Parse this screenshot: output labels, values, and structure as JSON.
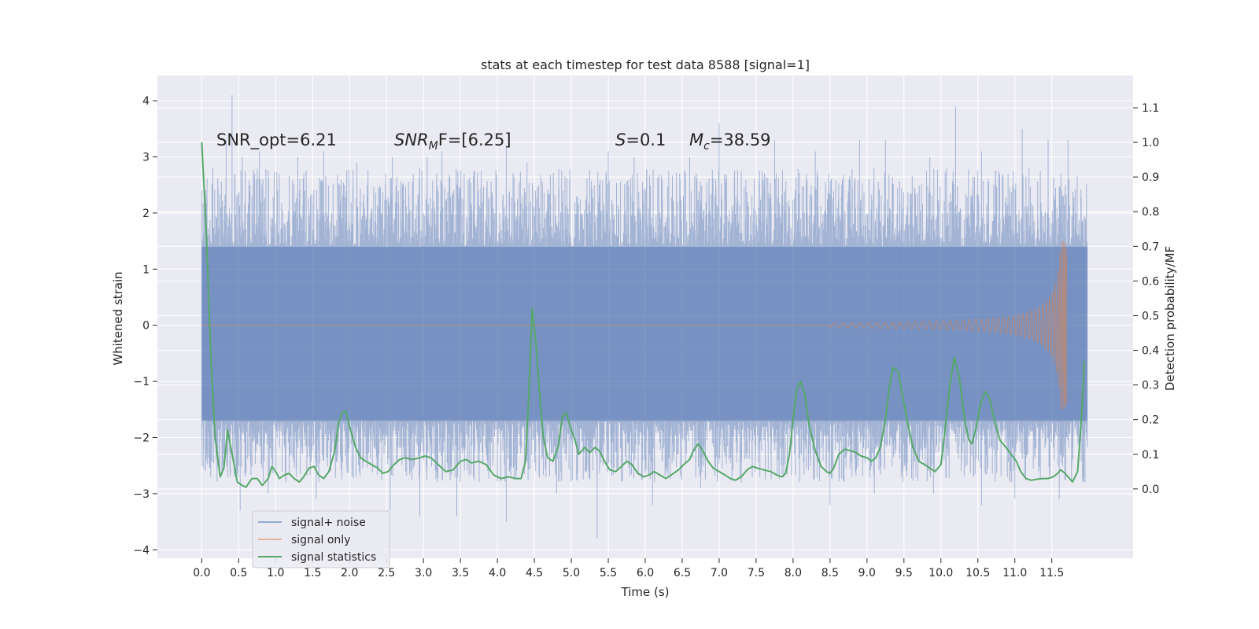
{
  "chart_data": {
    "type": "line",
    "title": "stats at each timestep for test data 8588 [signal=1]",
    "xlabel": "Time (s)",
    "ylabel_left": "Whitened strain",
    "ylabel_right": "Detection probability/MF",
    "xlim": [
      -0.6,
      12.6
    ],
    "ylim_left": [
      -4.15,
      4.45
    ],
    "ylim_right": [
      -0.2,
      1.193
    ],
    "x_ticks": [
      0.0,
      0.5,
      1.0,
      1.5,
      2.0,
      2.5,
      3.0,
      3.5,
      4.0,
      4.5,
      5.0,
      5.5,
      6.0,
      6.5,
      7.0,
      7.5,
      8.0,
      8.5,
      9.0,
      9.5,
      10.0,
      10.5,
      11.0,
      11.5
    ],
    "x_tick_labels": [
      "0.0",
      "0.5",
      "1.0",
      "1.5",
      "2.0",
      "2.5",
      "3.0",
      "3.5",
      "4.0",
      "4.5",
      "5.0",
      "5.5",
      "6.0",
      "6.5",
      "7.0",
      "7.5",
      "8.0",
      "8.5",
      "9.0",
      "9.5",
      "10.0",
      "10.5",
      "11.0",
      "11.5"
    ],
    "y_left_ticks": [
      4,
      3,
      2,
      1,
      0,
      -1,
      -2,
      -3,
      -4
    ],
    "y_left_tick_labels": [
      "4",
      "3",
      "2",
      "1",
      "0",
      "−1",
      "−2",
      "−3",
      "−4"
    ],
    "y_right_ticks": [
      1.1,
      1.0,
      0.9,
      0.8,
      0.7,
      0.6,
      0.5,
      0.4,
      0.3,
      0.2,
      0.1,
      0.0
    ],
    "y_right_tick_labels": [
      "1.1",
      "1.0",
      "0.9",
      "0.8",
      "0.7",
      "0.6",
      "0.5",
      "0.4",
      "0.3",
      "0.2",
      "0.1",
      "0.0"
    ],
    "annotations": {
      "snr_opt": "SNR_opt=6.21",
      "snr_mf_sym": "SNR",
      "snr_mf_sub": "M",
      "snr_mf_rest": "F=[6.25]",
      "s_sym": "S",
      "s_val": "=0.1",
      "mc_sym": "M",
      "mc_sub": "c",
      "mc_val": "=38.59"
    },
    "legend": {
      "position": "lower-left",
      "entries": [
        "signal+ noise",
        "signal only",
        "signal statistics"
      ]
    },
    "series": [
      {
        "name": "signal+ noise",
        "color": "#4c72b0",
        "x_range": [
          0.0,
          11.98
        ],
        "band_low": -1.7,
        "band_high": 1.4,
        "positive_peaks": [
          {
            "x": 0.0,
            "y": 2.4
          },
          {
            "x": 0.15,
            "y": 2.8
          },
          {
            "x": 0.33,
            "y": 3.3
          },
          {
            "x": 0.41,
            "y": 4.1
          },
          {
            "x": 0.55,
            "y": 3.0
          },
          {
            "x": 0.78,
            "y": 3.1
          },
          {
            "x": 1.3,
            "y": 3.0
          },
          {
            "x": 1.65,
            "y": 3.1
          },
          {
            "x": 2.1,
            "y": 2.9
          },
          {
            "x": 2.58,
            "y": 3.0
          },
          {
            "x": 3.05,
            "y": 3.0
          },
          {
            "x": 3.25,
            "y": 3.1
          },
          {
            "x": 4.12,
            "y": 3.2
          },
          {
            "x": 4.4,
            "y": 2.9
          },
          {
            "x": 5.5,
            "y": 3.1
          },
          {
            "x": 5.85,
            "y": 3.0
          },
          {
            "x": 6.6,
            "y": 3.0
          },
          {
            "x": 7.0,
            "y": 3.6
          },
          {
            "x": 7.75,
            "y": 3.3
          },
          {
            "x": 8.3,
            "y": 3.1
          },
          {
            "x": 8.9,
            "y": 3.3
          },
          {
            "x": 9.25,
            "y": 3.3
          },
          {
            "x": 9.85,
            "y": 3.0
          },
          {
            "x": 10.2,
            "y": 3.9
          },
          {
            "x": 10.55,
            "y": 3.1
          },
          {
            "x": 11.1,
            "y": 3.5
          },
          {
            "x": 11.45,
            "y": 3.3
          },
          {
            "x": 11.72,
            "y": 3.3
          }
        ],
        "negative_peaks": [
          {
            "x": 0.05,
            "y": -2.6
          },
          {
            "x": 0.52,
            "y": -3.3
          },
          {
            "x": 0.9,
            "y": -3.0
          },
          {
            "x": 1.55,
            "y": -3.1
          },
          {
            "x": 2.55,
            "y": -3.3
          },
          {
            "x": 2.95,
            "y": -3.4
          },
          {
            "x": 3.45,
            "y": -3.4
          },
          {
            "x": 4.12,
            "y": -3.5
          },
          {
            "x": 4.8,
            "y": -3.0
          },
          {
            "x": 5.35,
            "y": -3.8
          },
          {
            "x": 6.1,
            "y": -3.2
          },
          {
            "x": 6.75,
            "y": -2.9
          },
          {
            "x": 7.3,
            "y": -2.8
          },
          {
            "x": 8.5,
            "y": -3.2
          },
          {
            "x": 9.1,
            "y": -3.0
          },
          {
            "x": 9.9,
            "y": -3.0
          },
          {
            "x": 10.55,
            "y": -3.2
          },
          {
            "x": 11.0,
            "y": -3.1
          },
          {
            "x": 11.6,
            "y": -3.1
          },
          {
            "x": 11.95,
            "y": -2.8
          }
        ]
      },
      {
        "name": "signal only",
        "color": "#dd8452",
        "x_range": [
          0.0,
          11.72
        ],
        "chirp_start_x": 8.5,
        "peak_amplitude": 1.5,
        "peak_x": 11.68
      },
      {
        "name": "signal statistics",
        "color": "#55a868",
        "axis": "right",
        "points": [
          [
            0.0,
            1.0
          ],
          [
            0.06,
            0.75
          ],
          [
            0.12,
            0.4
          ],
          [
            0.18,
            0.15
          ],
          [
            0.25,
            0.035
          ],
          [
            0.3,
            0.06
          ],
          [
            0.35,
            0.17
          ],
          [
            0.42,
            0.09
          ],
          [
            0.48,
            0.02
          ],
          [
            0.55,
            0.01
          ],
          [
            0.6,
            0.005
          ],
          [
            0.68,
            0.03
          ],
          [
            0.75,
            0.03
          ],
          [
            0.82,
            0.01
          ],
          [
            0.9,
            0.03
          ],
          [
            0.95,
            0.065
          ],
          [
            1.0,
            0.05
          ],
          [
            1.05,
            0.03
          ],
          [
            1.12,
            0.04
          ],
          [
            1.18,
            0.045
          ],
          [
            1.25,
            0.03
          ],
          [
            1.32,
            0.02
          ],
          [
            1.38,
            0.035
          ],
          [
            1.45,
            0.06
          ],
          [
            1.52,
            0.065
          ],
          [
            1.58,
            0.04
          ],
          [
            1.65,
            0.03
          ],
          [
            1.72,
            0.05
          ],
          [
            1.8,
            0.11
          ],
          [
            1.85,
            0.19
          ],
          [
            1.9,
            0.22
          ],
          [
            1.95,
            0.225
          ],
          [
            2.0,
            0.18
          ],
          [
            2.08,
            0.12
          ],
          [
            2.15,
            0.09
          ],
          [
            2.22,
            0.08
          ],
          [
            2.3,
            0.07
          ],
          [
            2.38,
            0.06
          ],
          [
            2.45,
            0.045
          ],
          [
            2.52,
            0.05
          ],
          [
            2.6,
            0.07
          ],
          [
            2.68,
            0.085
          ],
          [
            2.75,
            0.09
          ],
          [
            2.85,
            0.085
          ],
          [
            2.95,
            0.09
          ],
          [
            3.02,
            0.095
          ],
          [
            3.1,
            0.09
          ],
          [
            3.2,
            0.07
          ],
          [
            3.3,
            0.05
          ],
          [
            3.4,
            0.055
          ],
          [
            3.5,
            0.08
          ],
          [
            3.58,
            0.085
          ],
          [
            3.65,
            0.075
          ],
          [
            3.75,
            0.08
          ],
          [
            3.85,
            0.07
          ],
          [
            3.95,
            0.04
          ],
          [
            4.05,
            0.03
          ],
          [
            4.15,
            0.035
          ],
          [
            4.25,
            0.03
          ],
          [
            4.32,
            0.03
          ],
          [
            4.38,
            0.08
          ],
          [
            4.42,
            0.25
          ],
          [
            4.47,
            0.52
          ],
          [
            4.52,
            0.42
          ],
          [
            4.58,
            0.25
          ],
          [
            4.62,
            0.15
          ],
          [
            4.68,
            0.09
          ],
          [
            4.75,
            0.08
          ],
          [
            4.82,
            0.12
          ],
          [
            4.88,
            0.21
          ],
          [
            4.93,
            0.22
          ],
          [
            5.0,
            0.17
          ],
          [
            5.05,
            0.14
          ],
          [
            5.1,
            0.1
          ],
          [
            5.18,
            0.12
          ],
          [
            5.25,
            0.105
          ],
          [
            5.32,
            0.12
          ],
          [
            5.38,
            0.11
          ],
          [
            5.45,
            0.08
          ],
          [
            5.52,
            0.055
          ],
          [
            5.6,
            0.05
          ],
          [
            5.68,
            0.065
          ],
          [
            5.75,
            0.08
          ],
          [
            5.82,
            0.07
          ],
          [
            5.9,
            0.045
          ],
          [
            5.98,
            0.035
          ],
          [
            6.05,
            0.04
          ],
          [
            6.12,
            0.05
          ],
          [
            6.2,
            0.04
          ],
          [
            6.28,
            0.03
          ],
          [
            6.35,
            0.04
          ],
          [
            6.45,
            0.055
          ],
          [
            6.52,
            0.07
          ],
          [
            6.6,
            0.085
          ],
          [
            6.65,
            0.11
          ],
          [
            6.72,
            0.13
          ],
          [
            6.78,
            0.11
          ],
          [
            6.85,
            0.08
          ],
          [
            6.92,
            0.06
          ],
          [
            7.0,
            0.05
          ],
          [
            7.08,
            0.04
          ],
          [
            7.15,
            0.03
          ],
          [
            7.22,
            0.025
          ],
          [
            7.3,
            0.035
          ],
          [
            7.38,
            0.055
          ],
          [
            7.45,
            0.065
          ],
          [
            7.52,
            0.06
          ],
          [
            7.6,
            0.055
          ],
          [
            7.7,
            0.05
          ],
          [
            7.78,
            0.04
          ],
          [
            7.85,
            0.035
          ],
          [
            7.9,
            0.045
          ],
          [
            7.95,
            0.1
          ],
          [
            8.0,
            0.2
          ],
          [
            8.05,
            0.29
          ],
          [
            8.1,
            0.31
          ],
          [
            8.16,
            0.27
          ],
          [
            8.22,
            0.18
          ],
          [
            8.3,
            0.11
          ],
          [
            8.38,
            0.065
          ],
          [
            8.45,
            0.05
          ],
          [
            8.5,
            0.045
          ],
          [
            8.55,
            0.06
          ],
          [
            8.62,
            0.1
          ],
          [
            8.7,
            0.115
          ],
          [
            8.78,
            0.11
          ],
          [
            8.85,
            0.105
          ],
          [
            8.92,
            0.095
          ],
          [
            9.0,
            0.09
          ],
          [
            9.06,
            0.08
          ],
          [
            9.12,
            0.09
          ],
          [
            9.18,
            0.12
          ],
          [
            9.25,
            0.2
          ],
          [
            9.3,
            0.29
          ],
          [
            9.35,
            0.35
          ],
          [
            9.42,
            0.34
          ],
          [
            9.48,
            0.27
          ],
          [
            9.55,
            0.19
          ],
          [
            9.62,
            0.12
          ],
          [
            9.7,
            0.08
          ],
          [
            9.78,
            0.07
          ],
          [
            9.85,
            0.06
          ],
          [
            9.92,
            0.05
          ],
          [
            10.0,
            0.07
          ],
          [
            10.05,
            0.16
          ],
          [
            10.12,
            0.3
          ],
          [
            10.18,
            0.38
          ],
          [
            10.25,
            0.32
          ],
          [
            10.32,
            0.2
          ],
          [
            10.38,
            0.14
          ],
          [
            10.42,
            0.13
          ],
          [
            10.48,
            0.18
          ],
          [
            10.54,
            0.25
          ],
          [
            10.6,
            0.28
          ],
          [
            10.66,
            0.26
          ],
          [
            10.72,
            0.2
          ],
          [
            10.8,
            0.14
          ],
          [
            10.88,
            0.12
          ],
          [
            10.95,
            0.1
          ],
          [
            11.02,
            0.08
          ],
          [
            11.08,
            0.05
          ],
          [
            11.15,
            0.03
          ],
          [
            11.22,
            0.025
          ],
          [
            11.3,
            0.028
          ],
          [
            11.38,
            0.03
          ],
          [
            11.45,
            0.03
          ],
          [
            11.52,
            0.035
          ],
          [
            11.58,
            0.045
          ],
          [
            11.62,
            0.055
          ],
          [
            11.68,
            0.045
          ],
          [
            11.74,
            0.03
          ],
          [
            11.78,
            0.02
          ],
          [
            11.85,
            0.05
          ],
          [
            11.9,
            0.2
          ],
          [
            11.94,
            0.37
          ]
        ]
      }
    ]
  }
}
